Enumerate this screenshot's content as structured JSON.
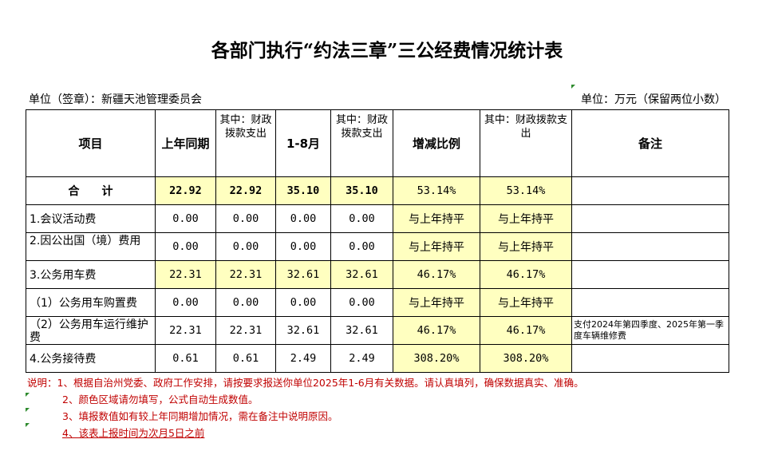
{
  "title": "各部门执行“约法三章”三公经费情况统计表",
  "unit_left": "单位（签章）：新疆天池管理委员会",
  "unit_right": "单位：万元（保留两位小数）",
  "headers": {
    "item": "项目",
    "prev_period": "上年同期",
    "prev_fiscal": "其中：财政拨款支出",
    "current": "1-8月",
    "current_fiscal": "其中：财政拨款支出",
    "ratio": "增减比例",
    "ratio_fiscal": "其中：财政拨款支出",
    "remark": "备注"
  },
  "rows": [
    {
      "item": "合　　计",
      "prev": "22.92",
      "prev_fiscal": "22.92",
      "cur": "35.10",
      "cur_fiscal": "35.10",
      "ratio": "53.14%",
      "ratio_fiscal": "53.14%",
      "remark": ""
    },
    {
      "item": "1.会议活动费",
      "prev": "0.00",
      "prev_fiscal": "0.00",
      "cur": "0.00",
      "cur_fiscal": "0.00",
      "ratio": "与上年持平",
      "ratio_fiscal": "与上年持平",
      "remark": ""
    },
    {
      "item": "2.因公出国（境）费用",
      "prev": "0.00",
      "prev_fiscal": "0.00",
      "cur": "0.00",
      "cur_fiscal": "0.00",
      "ratio": "与上年持平",
      "ratio_fiscal": "与上年持平",
      "remark": ""
    },
    {
      "item": "3.公务用车费",
      "prev": "22.31",
      "prev_fiscal": "22.31",
      "cur": "32.61",
      "cur_fiscal": "32.61",
      "ratio": "46.17%",
      "ratio_fiscal": "46.17%",
      "remark": ""
    },
    {
      "item": "（1）公务用车购置费",
      "prev": "0.00",
      "prev_fiscal": "0.00",
      "cur": "0.00",
      "cur_fiscal": "0.00",
      "ratio": "与上年持平",
      "ratio_fiscal": "与上年持平",
      "remark": ""
    },
    {
      "item": "（2）公务用车运行维护费",
      "prev": "22.31",
      "prev_fiscal": "22.31",
      "cur": "32.61",
      "cur_fiscal": "32.61",
      "ratio": "46.17%",
      "ratio_fiscal": "46.17%",
      "remark": "支付2024年第四季度、2025年第一季度车辆维修费"
    },
    {
      "item": "4.公务接待费",
      "prev": "0.61",
      "prev_fiscal": "0.61",
      "cur": "2.49",
      "cur_fiscal": "2.49",
      "ratio": "308.20%",
      "ratio_fiscal": "308.20%",
      "remark": ""
    }
  ],
  "notes": [
    "说明：1、根据自治州党委、政府工作安排，请按要求报送你单位2025年1-6月有关数据。请认真填列，确保数据真实、准确。",
    "2、颜色区域请勿填写，公式自动生成数值。",
    "3、填报数值如有较上年同期增加情况，需在备注中说明原因。",
    "4、该表上报时间为次月5日之前"
  ],
  "colors": {
    "highlight": "#ffffc0",
    "note_text": "#c00000",
    "marker": "#2e8b2e"
  }
}
